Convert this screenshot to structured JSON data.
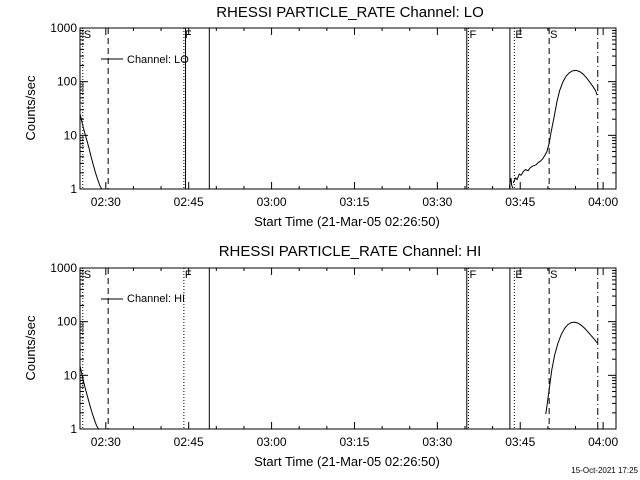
{
  "footer": {
    "timestamp": "15-Oct-2021 17:25"
  },
  "chart_data": [
    {
      "type": "line",
      "title": "RHESSI PARTICLE_RATE Channel: LO",
      "xlabel": "Start Time (21-Mar-05 02:26:50)",
      "ylabel": "Counts/sec",
      "y_scale": "log",
      "ylim": [
        1,
        1000
      ],
      "xlim_minutes": [
        -1.5,
        95.5
      ],
      "x_ticks": [
        {
          "t": 3.17,
          "label": "02:30"
        },
        {
          "t": 18.17,
          "label": "02:45"
        },
        {
          "t": 33.17,
          "label": "03:00"
        },
        {
          "t": 48.17,
          "label": "03:15"
        },
        {
          "t": 63.17,
          "label": "03:30"
        },
        {
          "t": 78.17,
          "label": "03:45"
        },
        {
          "t": 93.17,
          "label": "04:00"
        }
      ],
      "y_ticks": [
        {
          "v": 1,
          "label": "1"
        },
        {
          "v": 10,
          "label": "10"
        },
        {
          "v": 100,
          "label": "100"
        },
        {
          "v": 1000,
          "label": "1000"
        }
      ],
      "legend": {
        "label": "Channel: LO",
        "position": "top-left"
      },
      "flag_markers": [
        {
          "t": -1.0,
          "label": "S",
          "style": "dotted"
        },
        {
          "t": 17.3,
          "label": "F",
          "style": "dotted"
        },
        {
          "t": 68.8,
          "label": "F",
          "style": "dotted"
        },
        {
          "t": 77.1,
          "label": "E",
          "style": "dotted"
        }
      ],
      "event_lines": [
        {
          "t": 3.6,
          "label": "",
          "style": "dashed"
        },
        {
          "t": 83.4,
          "label": "S",
          "style": "dashed"
        },
        {
          "t": 92.2,
          "label": "",
          "style": "dashdot"
        }
      ],
      "gap_lines": [
        {
          "t": 17.6
        },
        {
          "t": 21.9
        },
        {
          "t": 68.5
        },
        {
          "t": 76.3
        }
      ],
      "series": [
        {
          "name": "Channel: LO",
          "x": [
            -1.5,
            -0.9,
            -0.4,
            0.1,
            0.5,
            0.9,
            1.3,
            1.7,
            2.1,
            2.4
          ],
          "y": [
            25,
            14,
            9,
            6,
            4,
            2.8,
            2,
            1.5,
            1.15,
            1.0
          ]
        },
        {
          "name": "Channel: LO",
          "x": [
            76.2,
            76.3,
            76.5,
            76.6,
            76.8
          ],
          "y": [
            1.05,
            1.25,
            1.6,
            1.2,
            1.05
          ]
        },
        {
          "name": "Channel: LO",
          "x": [
            76.9,
            77.3,
            77.6,
            78.0,
            78.3,
            78.7,
            79.1,
            79.6,
            80.0,
            80.5,
            81.0,
            81.4,
            81.8,
            82.2,
            82.6,
            83.0,
            83.4,
            83.8,
            84.3,
            84.8,
            85.3,
            85.9,
            86.5,
            87.1,
            87.7,
            88.3,
            88.9,
            89.5,
            90.1,
            90.7,
            91.3,
            91.8,
            92.1
          ],
          "y": [
            1.3,
            1.6,
            1.5,
            1.9,
            1.8,
            2.1,
            2.3,
            2.2,
            2.5,
            2.7,
            2.8,
            3.1,
            3.3,
            3.6,
            4.2,
            5.0,
            7.0,
            12,
            22,
            42,
            68,
            100,
            128,
            148,
            160,
            162,
            155,
            140,
            120,
            100,
            82,
            68,
            56
          ]
        }
      ]
    },
    {
      "type": "line",
      "title": "RHESSI PARTICLE_RATE Channel: HI",
      "xlabel": "Start Time (21-Mar-05 02:26:50)",
      "ylabel": "Counts/sec",
      "y_scale": "log",
      "ylim": [
        1,
        1000
      ],
      "xlim_minutes": [
        -1.5,
        95.5
      ],
      "x_ticks": [
        {
          "t": 3.17,
          "label": "02:30"
        },
        {
          "t": 18.17,
          "label": "02:45"
        },
        {
          "t": 33.17,
          "label": "03:00"
        },
        {
          "t": 48.17,
          "label": "03:15"
        },
        {
          "t": 63.17,
          "label": "03:30"
        },
        {
          "t": 78.17,
          "label": "03:45"
        },
        {
          "t": 93.17,
          "label": "04:00"
        }
      ],
      "y_ticks": [
        {
          "v": 1,
          "label": "1"
        },
        {
          "v": 10,
          "label": "10"
        },
        {
          "v": 100,
          "label": "100"
        },
        {
          "v": 1000,
          "label": "1000"
        }
      ],
      "legend": {
        "label": "Channel: HI",
        "position": "top-left"
      },
      "flag_markers": [
        {
          "t": -1.0,
          "label": "S",
          "style": "dotted"
        },
        {
          "t": 17.3,
          "label": "F",
          "style": "dotted"
        },
        {
          "t": 68.8,
          "label": "F",
          "style": "dotted"
        },
        {
          "t": 77.1,
          "label": "E",
          "style": "dotted"
        }
      ],
      "event_lines": [
        {
          "t": 3.6,
          "label": "",
          "style": "dashed"
        },
        {
          "t": 83.4,
          "label": "S",
          "style": "dashed"
        },
        {
          "t": 92.2,
          "label": "",
          "style": "dashdot"
        }
      ],
      "gap_lines": [
        {
          "t": 21.9
        },
        {
          "t": 68.5
        },
        {
          "t": 76.3
        }
      ],
      "series": [
        {
          "name": "Channel: HI",
          "x": [
            -1.5,
            -0.9,
            -0.4,
            0.1,
            0.5,
            0.9,
            1.3,
            1.6,
            1.9
          ],
          "y": [
            15,
            8,
            5,
            3.3,
            2.3,
            1.7,
            1.3,
            1.1,
            1.0
          ]
        },
        {
          "name": "Channel: HI",
          "x": [
            82.8,
            83.1,
            83.5,
            83.9,
            84.4,
            85.0,
            85.6,
            86.2,
            86.8,
            87.4,
            88.0,
            88.6,
            89.2,
            89.8,
            90.4,
            91.0,
            91.6,
            92.1
          ],
          "y": [
            1.9,
            3.2,
            6.5,
            13,
            24,
            40,
            58,
            75,
            88,
            96,
            98,
            94,
            86,
            76,
            65,
            55,
            47,
            40
          ]
        }
      ]
    }
  ]
}
